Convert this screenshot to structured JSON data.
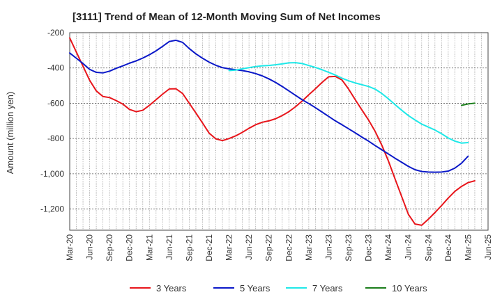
{
  "chart_data": {
    "type": "line",
    "title": "[3111]  Trend of Mean of 12-Month Moving Sum of Net Incomes",
    "ylabel": "Amount (million yen)",
    "xlabel": "",
    "ylim": [
      -1320,
      -200
    ],
    "yticks": [
      -200,
      -400,
      -600,
      -800,
      -1000,
      -1200
    ],
    "ytick_labels": [
      "-200",
      "-400",
      "-600",
      "-800",
      "-1,000",
      "-1,200"
    ],
    "xticks": [
      "Mar-20",
      "Jun-20",
      "Sep-20",
      "Dec-20",
      "Mar-21",
      "Jun-21",
      "Sep-21",
      "Dec-21",
      "Mar-22",
      "Jun-22",
      "Sep-22",
      "Dec-22",
      "Mar-23",
      "Jun-23",
      "Sep-23",
      "Dec-23",
      "Mar-24",
      "Jun-24",
      "Sep-24",
      "Dec-24",
      "Mar-25",
      "Jun-25"
    ],
    "grid": true,
    "legend_position": "bottom",
    "series": [
      {
        "name": "3 Years",
        "color": "#e8151b",
        "points": [
          [
            "Mar-20",
            -230
          ],
          [
            "Apr-20",
            -310
          ],
          [
            "May-20",
            -390
          ],
          [
            "Jun-20",
            -470
          ],
          [
            "Jul-20",
            -530
          ],
          [
            "Aug-20",
            -562
          ],
          [
            "Sep-20",
            -568
          ],
          [
            "Oct-20",
            -585
          ],
          [
            "Nov-20",
            -605
          ],
          [
            "Dec-20",
            -635
          ],
          [
            "Jan-21",
            -648
          ],
          [
            "Feb-21",
            -640
          ],
          [
            "Mar-21",
            -612
          ],
          [
            "Apr-21",
            -580
          ],
          [
            "May-21",
            -548
          ],
          [
            "Jun-21",
            -519
          ],
          [
            "Jul-21",
            -518
          ],
          [
            "Aug-21",
            -545
          ],
          [
            "Sep-21",
            -600
          ],
          [
            "Oct-21",
            -655
          ],
          [
            "Nov-21",
            -712
          ],
          [
            "Dec-21",
            -770
          ],
          [
            "Jan-22",
            -802
          ],
          [
            "Feb-22",
            -812
          ],
          [
            "Mar-22",
            -800
          ],
          [
            "Apr-22",
            -785
          ],
          [
            "May-22",
            -765
          ],
          [
            "Jun-22",
            -742
          ],
          [
            "Jul-22",
            -722
          ],
          [
            "Aug-22",
            -708
          ],
          [
            "Sep-22",
            -700
          ],
          [
            "Oct-22",
            -688
          ],
          [
            "Nov-22",
            -670
          ],
          [
            "Dec-22",
            -648
          ],
          [
            "Jan-23",
            -620
          ],
          [
            "Feb-23",
            -588
          ],
          [
            "Mar-23",
            -552
          ],
          [
            "Apr-23",
            -518
          ],
          [
            "May-23",
            -482
          ],
          [
            "Jun-23",
            -450
          ],
          [
            "Jul-23",
            -448
          ],
          [
            "Aug-23",
            -468
          ],
          [
            "Sep-23",
            -520
          ],
          [
            "Oct-23",
            -580
          ],
          [
            "Nov-23",
            -638
          ],
          [
            "Dec-23",
            -695
          ],
          [
            "Jan-24",
            -760
          ],
          [
            "Feb-24",
            -838
          ],
          [
            "Mar-24",
            -928
          ],
          [
            "Apr-24",
            -1030
          ],
          [
            "May-24",
            -1130
          ],
          [
            "Jun-24",
            -1230
          ],
          [
            "Jul-24",
            -1285
          ],
          [
            "Aug-24",
            -1292
          ],
          [
            "Sep-24",
            -1258
          ],
          [
            "Oct-24",
            -1220
          ],
          [
            "Nov-24",
            -1180
          ],
          [
            "Dec-24",
            -1138
          ],
          [
            "Jan-25",
            -1100
          ],
          [
            "Feb-25",
            -1072
          ],
          [
            "Mar-25",
            -1050
          ],
          [
            "Apr-25",
            -1040
          ]
        ]
      },
      {
        "name": "5 Years",
        "color": "#0a18c8",
        "points": [
          [
            "Mar-20",
            -315
          ],
          [
            "Apr-20",
            -345
          ],
          [
            "May-20",
            -375
          ],
          [
            "Jun-20",
            -408
          ],
          [
            "Jul-20",
            -425
          ],
          [
            "Aug-20",
            -428
          ],
          [
            "Sep-20",
            -418
          ],
          [
            "Oct-20",
            -402
          ],
          [
            "Nov-20",
            -388
          ],
          [
            "Dec-20",
            -373
          ],
          [
            "Jan-21",
            -360
          ],
          [
            "Feb-21",
            -344
          ],
          [
            "Mar-21",
            -325
          ],
          [
            "Apr-21",
            -303
          ],
          [
            "May-21",
            -277
          ],
          [
            "Jun-21",
            -250
          ],
          [
            "Jul-21",
            -243
          ],
          [
            "Aug-21",
            -255
          ],
          [
            "Sep-21",
            -290
          ],
          [
            "Oct-21",
            -320
          ],
          [
            "Nov-21",
            -345
          ],
          [
            "Dec-21",
            -367
          ],
          [
            "Jan-22",
            -385
          ],
          [
            "Feb-22",
            -398
          ],
          [
            "Mar-22",
            -405
          ],
          [
            "Apr-22",
            -410
          ],
          [
            "May-22",
            -415
          ],
          [
            "Jun-22",
            -422
          ],
          [
            "Jul-22",
            -432
          ],
          [
            "Aug-22",
            -445
          ],
          [
            "Sep-22",
            -462
          ],
          [
            "Oct-22",
            -482
          ],
          [
            "Nov-22",
            -505
          ],
          [
            "Dec-22",
            -530
          ],
          [
            "Jan-23",
            -555
          ],
          [
            "Feb-23",
            -580
          ],
          [
            "Mar-23",
            -602
          ],
          [
            "Apr-23",
            -625
          ],
          [
            "May-23",
            -650
          ],
          [
            "Jun-23",
            -675
          ],
          [
            "Jul-23",
            -700
          ],
          [
            "Aug-23",
            -722
          ],
          [
            "Sep-23",
            -745
          ],
          [
            "Oct-23",
            -768
          ],
          [
            "Nov-23",
            -792
          ],
          [
            "Dec-23",
            -815
          ],
          [
            "Jan-24",
            -840
          ],
          [
            "Feb-24",
            -864
          ],
          [
            "Mar-24",
            -888
          ],
          [
            "Apr-24",
            -912
          ],
          [
            "May-24",
            -935
          ],
          [
            "Jun-24",
            -958
          ],
          [
            "Jul-24",
            -977
          ],
          [
            "Aug-24",
            -987
          ],
          [
            "Sep-24",
            -990
          ],
          [
            "Oct-24",
            -991
          ],
          [
            "Nov-24",
            -990
          ],
          [
            "Dec-24",
            -985
          ],
          [
            "Jan-25",
            -968
          ],
          [
            "Feb-25",
            -940
          ],
          [
            "Mar-25",
            -900
          ]
        ]
      },
      {
        "name": "7 Years",
        "color": "#1ee8e8",
        "points": [
          [
            "Mar-22",
            -415
          ],
          [
            "Apr-22",
            -412
          ],
          [
            "May-22",
            -405
          ],
          [
            "Jun-22",
            -398
          ],
          [
            "Jul-22",
            -392
          ],
          [
            "Aug-22",
            -388
          ],
          [
            "Sep-22",
            -386
          ],
          [
            "Oct-22",
            -382
          ],
          [
            "Nov-22",
            -377
          ],
          [
            "Dec-22",
            -371
          ],
          [
            "Jan-23",
            -370
          ],
          [
            "Feb-23",
            -375
          ],
          [
            "Mar-23",
            -386
          ],
          [
            "Apr-23",
            -397
          ],
          [
            "May-23",
            -410
          ],
          [
            "Jun-23",
            -425
          ],
          [
            "Jul-23",
            -440
          ],
          [
            "Aug-23",
            -458
          ],
          [
            "Sep-23",
            -473
          ],
          [
            "Oct-23",
            -485
          ],
          [
            "Nov-23",
            -495
          ],
          [
            "Dec-23",
            -505
          ],
          [
            "Jan-24",
            -520
          ],
          [
            "Feb-24",
            -545
          ],
          [
            "Mar-24",
            -575
          ],
          [
            "Apr-24",
            -608
          ],
          [
            "May-24",
            -640
          ],
          [
            "Jun-24",
            -670
          ],
          [
            "Jul-24",
            -695
          ],
          [
            "Aug-24",
            -718
          ],
          [
            "Sep-24",
            -735
          ],
          [
            "Oct-24",
            -752
          ],
          [
            "Nov-24",
            -773
          ],
          [
            "Dec-24",
            -797
          ],
          [
            "Jan-25",
            -815
          ],
          [
            "Feb-25",
            -826
          ],
          [
            "Mar-25",
            -823
          ]
        ]
      },
      {
        "name": "10 Years",
        "color": "#1a7d1a",
        "points": [
          [
            "Feb-25",
            -612
          ],
          [
            "Mar-25",
            -604
          ],
          [
            "Apr-25",
            -600
          ]
        ]
      }
    ]
  }
}
